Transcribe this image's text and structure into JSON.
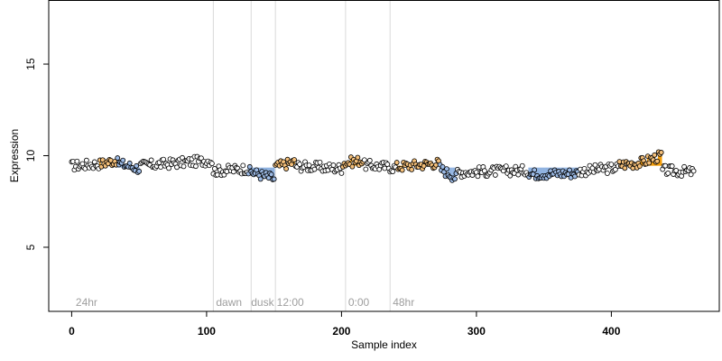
{
  "chart_data": {
    "type": "scatter",
    "title": "",
    "xlabel": "Sample index",
    "ylabel": "Expression",
    "xlim": [
      -17,
      480
    ],
    "ylim": [
      1.5,
      18.5
    ],
    "xticks": [
      0,
      100,
      200,
      300,
      400
    ],
    "yticks": [
      5,
      10,
      15
    ],
    "xtick_labels": [
      "0",
      "100",
      "200",
      "300",
      "400"
    ],
    "ytick_labels": [
      "5",
      "10",
      "15"
    ],
    "grid": false,
    "legend": "none",
    "n_points": 462,
    "marker": "open-circle",
    "point_fill_normal": "#ffffff",
    "point_fill_high": "#f5c07a",
    "point_fill_low": "#9dbbe6",
    "point_stroke": "#000000",
    "high_line_color": "#f59e0b",
    "low_line_color": "#8fb2e0",
    "vline_color": "#d9d9d9",
    "annotation_color": "#9e9e9e",
    "segments": [
      {
        "x0": 0,
        "x1": 20,
        "y0": 9.45,
        "y1": 9.55,
        "state": "normal"
      },
      {
        "x0": 21,
        "x1": 33,
        "y0": 9.55,
        "y1": 9.75,
        "state": "high"
      },
      {
        "x0": 34,
        "x1": 50,
        "y0": 9.6,
        "y1": 9.3,
        "state": "low"
      },
      {
        "x0": 51,
        "x1": 104,
        "y0": 9.45,
        "y1": 9.75,
        "state": "normal"
      },
      {
        "x0": 105,
        "x1": 130,
        "y0": 9.15,
        "y1": 9.3,
        "state": "normal"
      },
      {
        "x0": 131,
        "x1": 150,
        "y0": 9.15,
        "y1": 8.75,
        "state": "low"
      },
      {
        "x0": 151,
        "x1": 165,
        "y0": 9.4,
        "y1": 9.65,
        "state": "high"
      },
      {
        "x0": 166,
        "x1": 200,
        "y0": 9.45,
        "y1": 9.3,
        "state": "normal"
      },
      {
        "x0": 201,
        "x1": 216,
        "y0": 9.6,
        "y1": 9.75,
        "state": "high"
      },
      {
        "x0": 217,
        "x1": 240,
        "y0": 9.5,
        "y1": 9.35,
        "state": "normal"
      },
      {
        "x0": 241,
        "x1": 272,
        "y0": 9.4,
        "y1": 9.6,
        "state": "high"
      },
      {
        "x0": 273,
        "x1": 285,
        "y0": 9.3,
        "y1": 8.8,
        "state": "low"
      },
      {
        "x0": 286,
        "x1": 338,
        "y0": 9.1,
        "y1": 9.2,
        "state": "normal"
      },
      {
        "x0": 339,
        "x1": 375,
        "y0": 9.0,
        "y1": 9.05,
        "state": "low"
      },
      {
        "x0": 376,
        "x1": 405,
        "y0": 9.15,
        "y1": 9.35,
        "state": "normal"
      },
      {
        "x0": 406,
        "x1": 420,
        "y0": 9.5,
        "y1": 9.6,
        "state": "high"
      },
      {
        "x0": 421,
        "x1": 437,
        "y0": 9.6,
        "y1": 10.0,
        "state": "high"
      },
      {
        "x0": 438,
        "x1": 461,
        "y0": 9.2,
        "y1": 9.1,
        "state": "normal"
      }
    ],
    "vlines": [
      105,
      133,
      151,
      203,
      236
    ],
    "annotations": [
      {
        "x": 3,
        "y": 2.0,
        "text": "24hr"
      },
      {
        "x": 107,
        "y": 2.0,
        "text": "dawn"
      },
      {
        "x": 133,
        "y": 2.0,
        "text": "dusk"
      },
      {
        "x": 152,
        "y": 2.0,
        "text": "12:00"
      },
      {
        "x": 205,
        "y": 2.0,
        "text": "0:00"
      },
      {
        "x": 238,
        "y": 2.0,
        "text": "48hr"
      }
    ]
  }
}
